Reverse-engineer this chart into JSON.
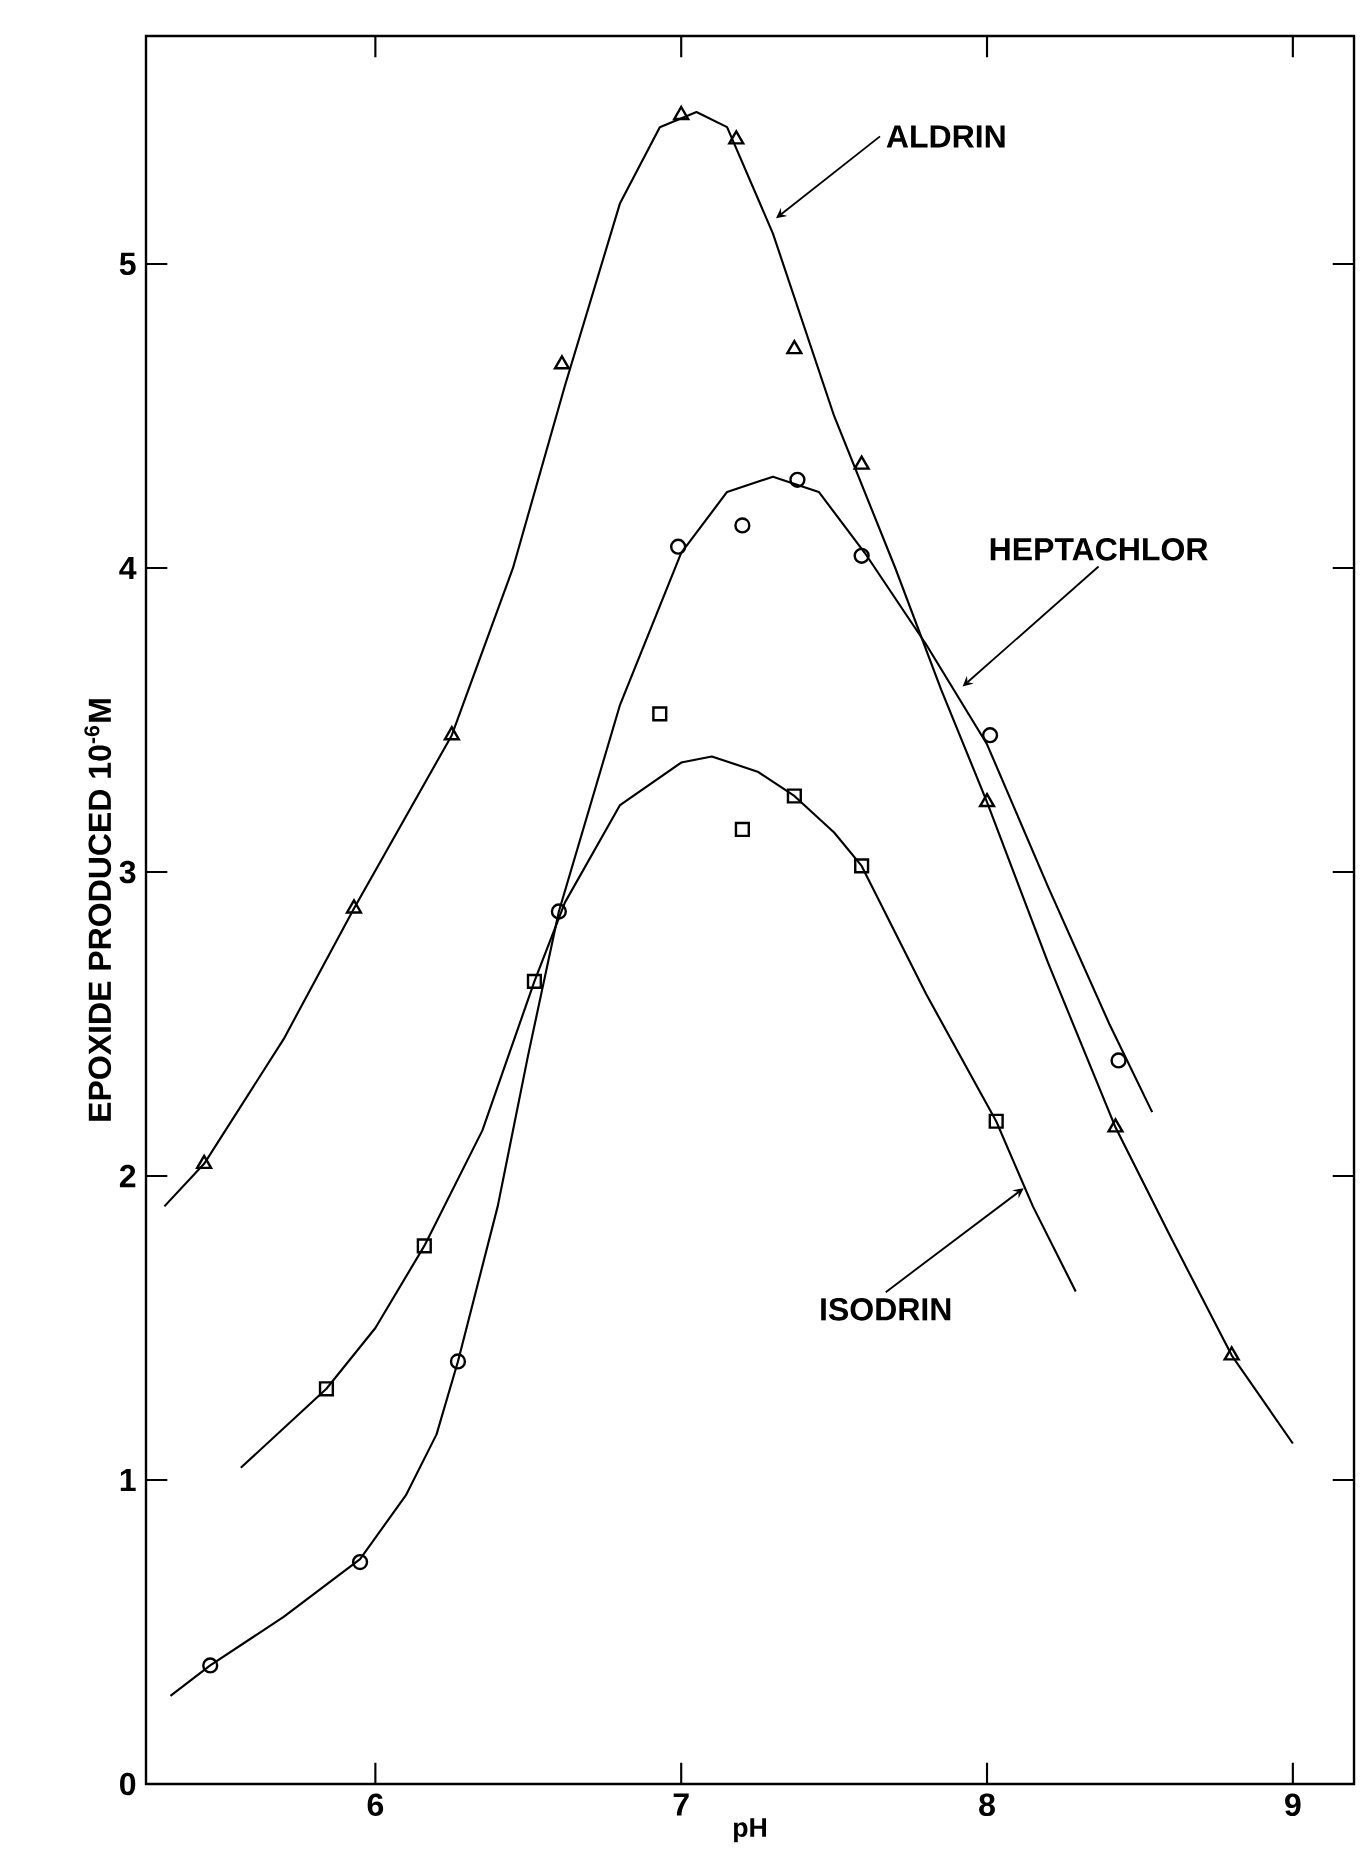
{
  "chart_data": {
    "type": "line",
    "xlabel": "pH",
    "ylabel": "EPOXIDE PRODUCED 10$^{-6}$M",
    "xlim": [
      5.25,
      9.2
    ],
    "ylim": [
      0,
      5.75
    ],
    "xticks": [
      6,
      7,
      8,
      9
    ],
    "yticks": [
      0,
      1,
      2,
      3,
      4,
      5
    ],
    "series": [
      {
        "color": "#000000",
        "marker": "none",
        "x": [
          5.31,
          5.44,
          5.7,
          5.93,
          6.25,
          6.45,
          6.62,
          6.8,
          6.93,
          7.05,
          7.15,
          7.3,
          7.5,
          7.7,
          7.85,
          8.0,
          8.2,
          8.42,
          8.6,
          8.8,
          9.0
        ],
        "values": [
          1.9,
          2.04,
          2.45,
          2.88,
          3.45,
          4.0,
          4.6,
          5.2,
          5.45,
          5.5,
          5.45,
          5.1,
          4.5,
          4.0,
          3.6,
          3.23,
          2.7,
          2.16,
          1.8,
          1.41,
          1.12
        ]
      },
      {
        "type": "scatter",
        "color": "#000000",
        "marker": "triangle",
        "x": [
          5.44,
          5.93,
          6.25,
          6.61,
          7.0,
          7.18,
          7.37,
          7.59,
          8.0,
          8.42,
          8.8
        ],
        "values": [
          2.04,
          2.88,
          3.45,
          4.67,
          5.49,
          5.41,
          4.72,
          4.34,
          3.23,
          2.16,
          1.41
        ]
      },
      {
        "color": "#000000",
        "marker": "none",
        "x": [
          5.33,
          5.46,
          5.7,
          5.95,
          6.1,
          6.2,
          6.27,
          6.4,
          6.5,
          6.6,
          6.8,
          7.0,
          7.15,
          7.3,
          7.45,
          7.6,
          7.8,
          8.0,
          8.2,
          8.4,
          8.54
        ],
        "values": [
          0.29,
          0.39,
          0.55,
          0.74,
          0.95,
          1.15,
          1.39,
          1.9,
          2.4,
          2.87,
          3.55,
          4.05,
          4.25,
          4.3,
          4.25,
          4.05,
          3.75,
          3.42,
          2.95,
          2.5,
          2.21
        ]
      },
      {
        "type": "scatter",
        "color": "#000000",
        "marker": "circle",
        "x": [
          5.46,
          5.95,
          6.27,
          6.6,
          6.99,
          7.2,
          7.38,
          7.59,
          8.01,
          8.43
        ],
        "values": [
          0.39,
          0.73,
          1.39,
          2.87,
          4.07,
          4.14,
          4.29,
          4.04,
          3.45,
          2.38
        ]
      },
      {
        "color": "#000000",
        "marker": "none",
        "x": [
          5.56,
          5.84,
          6.0,
          6.16,
          6.35,
          6.52,
          6.62,
          6.8,
          7.0,
          7.1,
          7.25,
          7.37,
          7.5,
          7.59,
          7.8,
          8.03,
          8.15,
          8.29
        ],
        "values": [
          1.04,
          1.3,
          1.5,
          1.77,
          2.15,
          2.64,
          2.9,
          3.22,
          3.36,
          3.38,
          3.33,
          3.25,
          3.13,
          3.02,
          2.6,
          2.18,
          1.9,
          1.62
        ]
      },
      {
        "type": "scatter",
        "color": "#000000",
        "marker": "square",
        "x": [
          5.84,
          6.16,
          6.52,
          6.93,
          7.2,
          7.37,
          7.59,
          8.03
        ],
        "values": [
          1.3,
          1.77,
          2.64,
          3.52,
          3.14,
          3.25,
          3.02,
          2.18
        ]
      }
    ],
    "annotations": [
      {
        "text": "ALDRIN",
        "x": 7.31,
        "y": 5.15
      },
      {
        "text": "HEPTACHLOR",
        "x": 7.92,
        "y": 3.61
      },
      {
        "text": "ISODRIN",
        "x": 8.12,
        "y": 1.96
      }
    ]
  }
}
